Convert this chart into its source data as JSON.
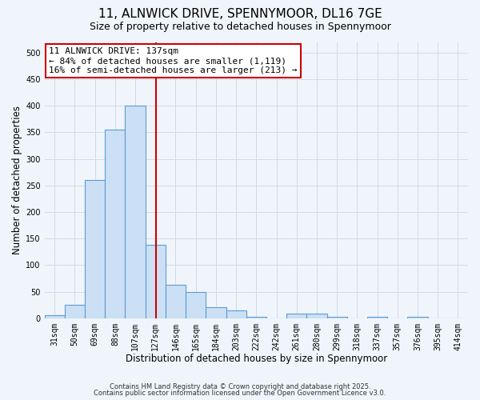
{
  "title": "11, ALNWICK DRIVE, SPENNYMOOR, DL16 7GE",
  "subtitle": "Size of property relative to detached houses in Spennymoor",
  "xlabel": "Distribution of detached houses by size in Spennymoor",
  "ylabel": "Number of detached properties",
  "bar_labels": [
    "31sqm",
    "50sqm",
    "69sqm",
    "88sqm",
    "107sqm",
    "127sqm",
    "146sqm",
    "165sqm",
    "184sqm",
    "203sqm",
    "222sqm",
    "242sqm",
    "261sqm",
    "280sqm",
    "299sqm",
    "318sqm",
    "337sqm",
    "357sqm",
    "376sqm",
    "395sqm",
    "414sqm"
  ],
  "bar_values": [
    5,
    25,
    260,
    355,
    400,
    138,
    63,
    50,
    20,
    15,
    3,
    0,
    8,
    8,
    2,
    0,
    2,
    0,
    2,
    0,
    0
  ],
  "bar_color": "#cce0f5",
  "bar_edge_color": "#5b9bd5",
  "vline_color": "#cc0000",
  "annotation_line1": "11 ALNWICK DRIVE: 137sqm",
  "annotation_line2": "← 84% of detached houses are smaller (1,119)",
  "annotation_line3": "16% of semi-detached houses are larger (213) →",
  "annotation_box_color": "#ffffff",
  "annotation_box_edge": "#cc0000",
  "ylim": [
    0,
    520
  ],
  "yticks": [
    0,
    50,
    100,
    150,
    200,
    250,
    300,
    350,
    400,
    450,
    500
  ],
  "grid_color": "#d0dce8",
  "background_color": "#f0f5fb",
  "footer_line1": "Contains HM Land Registry data © Crown copyright and database right 2025.",
  "footer_line2": "Contains public sector information licensed under the Open Government Licence v3.0.",
  "title_fontsize": 11,
  "subtitle_fontsize": 9,
  "axis_label_fontsize": 8.5,
  "tick_fontsize": 7,
  "annotation_fontsize": 8
}
